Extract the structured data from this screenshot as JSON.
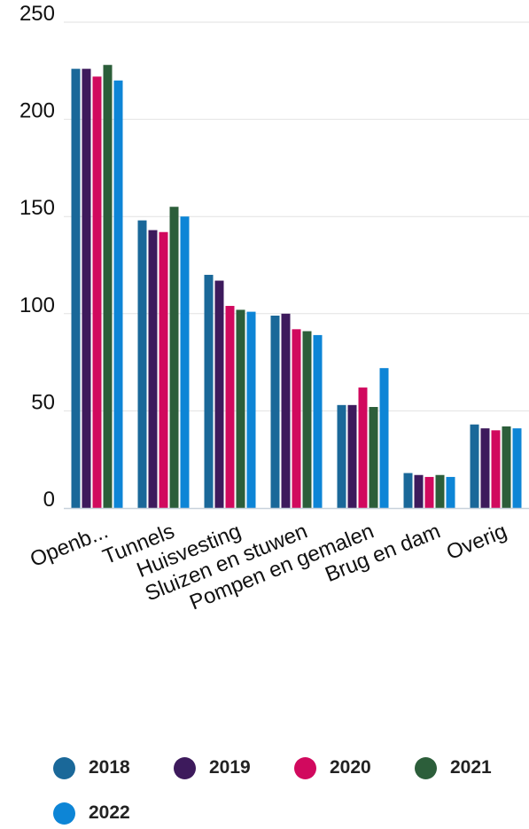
{
  "chart_data": {
    "type": "bar",
    "categories": [
      "Openb...",
      "Tunnels",
      "Huisvesting",
      "Sluizen en stuwen",
      "Pompen en gemalen",
      "Brug en dam",
      "Overig"
    ],
    "series": [
      {
        "name": "2018",
        "color": "#1a6899",
        "values": [
          226,
          148,
          120,
          99,
          53,
          18,
          43
        ]
      },
      {
        "name": "2019",
        "color": "#3d1a5c",
        "values": [
          226,
          143,
          117,
          100,
          53,
          17,
          41
        ]
      },
      {
        "name": "2020",
        "color": "#d1095e",
        "values": [
          222,
          142,
          104,
          92,
          62,
          16,
          40
        ]
      },
      {
        "name": "2021",
        "color": "#2c5e3a",
        "values": [
          228,
          155,
          102,
          91,
          52,
          17,
          42
        ]
      },
      {
        "name": "2022",
        "color": "#0d85d6",
        "values": [
          220,
          150,
          101,
          89,
          72,
          16,
          41
        ]
      }
    ],
    "yticks": [
      0,
      50,
      100,
      150,
      200,
      250
    ],
    "ylim": [
      0,
      250
    ],
    "grid": true,
    "legend_position": "bottom"
  }
}
